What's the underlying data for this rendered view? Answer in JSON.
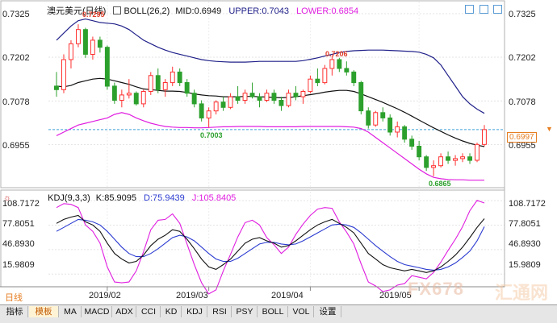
{
  "header": {
    "symbol": "澳元美元",
    "period": "(日线)",
    "indicator_label": "BOLL(26,2)",
    "mid_label": "MID:",
    "mid_value": "0.6949",
    "upper_label": "UPPER:",
    "upper_value": "0.7043",
    "lower_label": "LOWER:",
    "lower_value": "0.6854"
  },
  "kdj_header": {
    "label": "KDJ(9,3,3)",
    "k_label": "K:",
    "k_value": "85.9095",
    "d_label": "D:",
    "d_value": "75.9439",
    "j_label": "J:",
    "j_value": "105.8405"
  },
  "price_axis": [
    "0.7325",
    "0.7202",
    "0.7078",
    "0.6955"
  ],
  "current_price": "0.6997",
  "kdj_axis": [
    "108.7172",
    "77.8051",
    "46.8930",
    "15.9809"
  ],
  "annotations": {
    "high": "0.7295",
    "mid_high": "0.7206",
    "low_mid": "0.7003",
    "low": "0.6865"
  },
  "date_labels": [
    "2019/02",
    "2019/03",
    "2019/04",
    "2019/05"
  ],
  "period_tab": "日线",
  "toolbar": [
    "指标",
    "模板",
    "MA",
    "MACD",
    "ADX",
    "CCI",
    "KD",
    "KDJ",
    "RSI",
    "PSY",
    "BOLL",
    "VOL",
    "设置"
  ],
  "watermark": "FX678",
  "watermark2": "汇通网",
  "colors": {
    "up": "#ff3030",
    "down": "#2ca02c",
    "mid": "#111111",
    "upper": "#20208a",
    "lower": "#e01ee0",
    "k": "#111111",
    "d": "#2b3bd0",
    "j": "#e01ee0",
    "annotation": "#e03c28",
    "annotation_low": "#2ca02c",
    "current_line": "#3fa0d8"
  },
  "chart_data": {
    "type": "candlestick",
    "price_ylim": [
      0.6835,
      0.735
    ],
    "kdj_ylim": [
      0,
      120
    ],
    "candles": [
      [
        0.712,
        0.716,
        0.709,
        0.711
      ],
      [
        0.711,
        0.721,
        0.71,
        0.7195
      ],
      [
        0.7195,
        0.725,
        0.717,
        0.724
      ],
      [
        0.724,
        0.7295,
        0.723,
        0.728
      ],
      [
        0.728,
        0.7285,
        0.72,
        0.721
      ],
      [
        0.721,
        0.726,
        0.7195,
        0.725
      ],
      [
        0.725,
        0.726,
        0.7215,
        0.723
      ],
      [
        0.723,
        0.7235,
        0.711,
        0.712
      ],
      [
        0.712,
        0.713,
        0.707,
        0.708
      ],
      [
        0.708,
        0.711,
        0.706,
        0.7095
      ],
      [
        0.7095,
        0.714,
        0.7085,
        0.71
      ],
      [
        0.71,
        0.7105,
        0.7065,
        0.707
      ],
      [
        0.707,
        0.711,
        0.706,
        0.7105
      ],
      [
        0.7105,
        0.716,
        0.7095,
        0.715
      ],
      [
        0.715,
        0.717,
        0.71,
        0.711
      ],
      [
        0.711,
        0.714,
        0.709,
        0.713
      ],
      [
        0.713,
        0.7175,
        0.712,
        0.716
      ],
      [
        0.716,
        0.717,
        0.712,
        0.713
      ],
      [
        0.713,
        0.714,
        0.709,
        0.71
      ],
      [
        0.71,
        0.711,
        0.706,
        0.707
      ],
      [
        0.707,
        0.708,
        0.702,
        0.703
      ],
      [
        0.703,
        0.706,
        0.7003,
        0.705
      ],
      [
        0.705,
        0.708,
        0.704,
        0.7075
      ],
      [
        0.7075,
        0.709,
        0.705,
        0.706
      ],
      [
        0.706,
        0.71,
        0.7055,
        0.709
      ],
      [
        0.709,
        0.712,
        0.707,
        0.708
      ],
      [
        0.708,
        0.711,
        0.707,
        0.71
      ],
      [
        0.71,
        0.713,
        0.7085,
        0.709
      ],
      [
        0.709,
        0.71,
        0.706,
        0.708
      ],
      [
        0.708,
        0.711,
        0.7075,
        0.71
      ],
      [
        0.71,
        0.711,
        0.707,
        0.708
      ],
      [
        0.708,
        0.709,
        0.705,
        0.7065
      ],
      [
        0.7065,
        0.711,
        0.706,
        0.71
      ],
      [
        0.71,
        0.712,
        0.708,
        0.709
      ],
      [
        0.709,
        0.711,
        0.707,
        0.7105
      ],
      [
        0.7105,
        0.715,
        0.71,
        0.714
      ],
      [
        0.714,
        0.717,
        0.712,
        0.713
      ],
      [
        0.713,
        0.718,
        0.7125,
        0.717
      ],
      [
        0.717,
        0.7206,
        0.715,
        0.7195
      ],
      [
        0.7195,
        0.72,
        0.716,
        0.717
      ],
      [
        0.717,
        0.719,
        0.715,
        0.716
      ],
      [
        0.716,
        0.7165,
        0.712,
        0.713
      ],
      [
        0.713,
        0.7135,
        0.704,
        0.705
      ],
      [
        0.705,
        0.706,
        0.7,
        0.701
      ],
      [
        0.701,
        0.705,
        0.7005,
        0.7045
      ],
      [
        0.7045,
        0.706,
        0.702,
        0.703
      ],
      [
        0.703,
        0.704,
        0.698,
        0.699
      ],
      [
        0.699,
        0.702,
        0.6975,
        0.7005
      ],
      [
        0.7005,
        0.701,
        0.696,
        0.697
      ],
      [
        0.697,
        0.698,
        0.694,
        0.695
      ],
      [
        0.695,
        0.6965,
        0.691,
        0.692
      ],
      [
        0.692,
        0.6925,
        0.688,
        0.689
      ],
      [
        0.689,
        0.691,
        0.6865,
        0.6895
      ],
      [
        0.6895,
        0.693,
        0.689,
        0.692
      ],
      [
        0.692,
        0.6935,
        0.69,
        0.691
      ],
      [
        0.691,
        0.6925,
        0.6895,
        0.6915
      ],
      [
        0.6915,
        0.693,
        0.6905,
        0.692
      ],
      [
        0.692,
        0.693,
        0.69,
        0.691
      ],
      [
        0.691,
        0.696,
        0.6905,
        0.6955
      ],
      [
        0.6955,
        0.701,
        0.695,
        0.6997
      ]
    ],
    "mid": [
      0.712,
      0.7118,
      0.7122,
      0.713,
      0.7135,
      0.714,
      0.7142,
      0.714,
      0.7135,
      0.713,
      0.7125,
      0.7118,
      0.7112,
      0.711,
      0.7108,
      0.7106,
      0.7106,
      0.7105,
      0.7102,
      0.7098,
      0.7095,
      0.7093,
      0.7092,
      0.709,
      0.709,
      0.709,
      0.7091,
      0.7091,
      0.709,
      0.7089,
      0.7088,
      0.7087,
      0.7088,
      0.709,
      0.7093,
      0.7096,
      0.7099,
      0.7103,
      0.7106,
      0.7108,
      0.7108,
      0.7105,
      0.7098,
      0.709,
      0.7082,
      0.7074,
      0.7065,
      0.7056,
      0.7046,
      0.7035,
      0.7024,
      0.7013,
      0.7002,
      0.6992,
      0.6982,
      0.6973,
      0.6965,
      0.6958,
      0.6953,
      0.6949
    ],
    "upper": [
      0.725,
      0.727,
      0.729,
      0.7305,
      0.731,
      0.7305,
      0.73,
      0.7298,
      0.7296,
      0.729,
      0.728,
      0.7265,
      0.725,
      0.724,
      0.723,
      0.7222,
      0.7215,
      0.721,
      0.7205,
      0.72,
      0.7195,
      0.7192,
      0.719,
      0.7189,
      0.7188,
      0.7188,
      0.7188,
      0.7189,
      0.719,
      0.719,
      0.719,
      0.719,
      0.719,
      0.719,
      0.7192,
      0.7196,
      0.72,
      0.7205,
      0.721,
      0.7215,
      0.7218,
      0.722,
      0.7221,
      0.7222,
      0.7222,
      0.7222,
      0.7221,
      0.722,
      0.7219,
      0.7218,
      0.7216,
      0.721,
      0.72,
      0.718,
      0.715,
      0.712,
      0.709,
      0.707,
      0.7055,
      0.7043
    ],
    "lower": [
      0.698,
      0.699,
      0.7,
      0.701,
      0.7015,
      0.702,
      0.7025,
      0.703,
      0.704,
      0.7045,
      0.704,
      0.703,
      0.7022,
      0.7015,
      0.701,
      0.7006,
      0.7004,
      0.7003,
      0.7003,
      0.7002,
      0.7002,
      0.7003,
      0.7004,
      0.7005,
      0.7005,
      0.7006,
      0.7006,
      0.7006,
      0.7006,
      0.7005,
      0.7005,
      0.7005,
      0.7005,
      0.7005,
      0.7006,
      0.7006,
      0.7006,
      0.7006,
      0.7006,
      0.7006,
      0.7005,
      0.7004,
      0.7,
      0.699,
      0.6975,
      0.696,
      0.6945,
      0.693,
      0.6915,
      0.69,
      0.6885,
      0.6872,
      0.6862,
      0.6858,
      0.6856,
      0.6855,
      0.6855,
      0.6854,
      0.6854,
      0.6854
    ],
    "k": [
      80,
      85,
      88,
      90,
      82,
      78,
      70,
      55,
      42,
      35,
      30,
      32,
      40,
      52,
      60,
      65,
      72,
      70,
      60,
      48,
      35,
      25,
      22,
      28,
      35,
      45,
      55,
      60,
      62,
      58,
      55,
      50,
      52,
      58,
      65,
      72,
      78,
      82,
      85,
      80,
      75,
      68,
      55,
      42,
      35,
      28,
      24,
      22,
      20,
      22,
      20,
      18,
      20,
      25,
      32,
      40,
      50,
      62,
      75,
      85.9
    ],
    "d": [
      70,
      75,
      80,
      85,
      84,
      82,
      78,
      70,
      60,
      50,
      42,
      38,
      38,
      42,
      48,
      55,
      62,
      65,
      63,
      58,
      50,
      42,
      35,
      32,
      32,
      36,
      42,
      48,
      54,
      56,
      56,
      54,
      53,
      54,
      58,
      63,
      68,
      73,
      78,
      79,
      78,
      75,
      68,
      60,
      52,
      45,
      38,
      32,
      28,
      26,
      24,
      22,
      21,
      22,
      25,
      30,
      37,
      45,
      58,
      75.9
    ],
    "j": [
      100,
      105,
      104,
      100,
      78,
      70,
      55,
      25,
      6,
      5,
      6,
      20,
      44,
      72,
      84,
      85,
      92,
      80,
      54,
      28,
      5,
      -9,
      -4,
      20,
      41,
      63,
      81,
      84,
      78,
      62,
      53,
      42,
      50,
      66,
      79,
      90,
      98,
      100,
      99,
      82,
      69,
      54,
      29,
      6,
      1,
      -6,
      -4,
      2,
      4,
      14,
      12,
      10,
      18,
      31,
      46,
      60,
      76,
      96,
      109,
      105.8
    ],
    "date_tick_index": [
      7,
      21,
      35,
      50
    ]
  }
}
